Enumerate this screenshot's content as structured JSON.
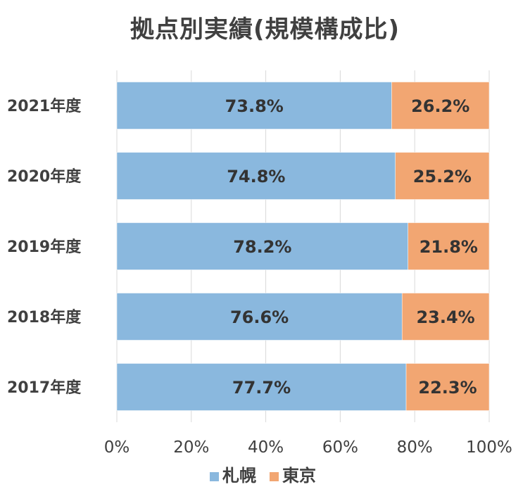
{
  "chart_data": {
    "type": "bar",
    "orientation": "horizontal",
    "stacked": "percent",
    "title": "拠点別実績(規模構成比)",
    "categories": [
      "2021年度",
      "2020年度",
      "2019年度",
      "2018年度",
      "2017年度"
    ],
    "series": [
      {
        "name": "札幌",
        "color": "#8ab8de",
        "values": [
          73.8,
          74.8,
          78.2,
          76.6,
          77.7
        ],
        "labels": [
          "73.8%",
          "74.8%",
          "78.2%",
          "76.6%",
          "77.7%"
        ]
      },
      {
        "name": "東京",
        "color": "#f2a672",
        "values": [
          26.2,
          25.2,
          21.8,
          23.4,
          22.3
        ],
        "labels": [
          "26.2%",
          "25.2%",
          "21.8%",
          "23.4%",
          "22.3%"
        ]
      }
    ],
    "xticks": [
      "0%",
      "20%",
      "40%",
      "60%",
      "80%",
      "100%"
    ],
    "xlim": [
      0,
      100
    ],
    "grid": true,
    "legend_position": "bottom"
  }
}
